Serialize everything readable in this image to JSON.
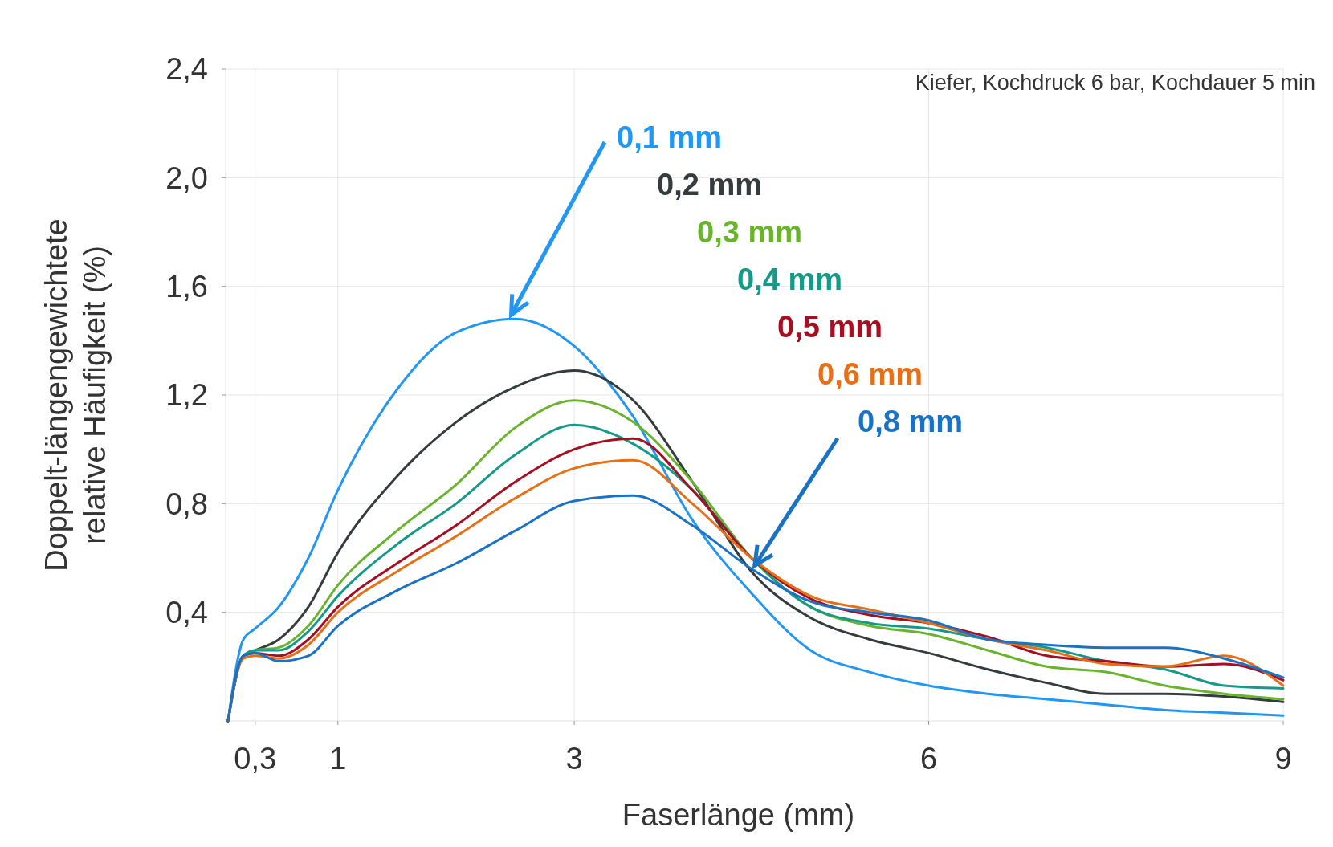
{
  "chart_data": {
    "type": "line",
    "subtitle": "Kiefer, Kochdruck 6 bar, Kochdauer 5 min",
    "xlabel": "Faserlänge (mm)",
    "ylabel": "Doppelt-längengewichtete relative Häufigkeit (%)",
    "x": [
      0.07,
      0.2,
      0.3,
      0.5,
      0.75,
      1,
      1.5,
      2,
      2.5,
      3,
      3.5,
      4,
      4.5,
      5,
      5.5,
      6,
      6.5,
      7,
      7.5,
      8,
      8.5,
      9
    ],
    "series": [
      {
        "name": "0,1 mm",
        "color": "#2196f3",
        "values": [
          0,
          0.3,
          0.34,
          0.42,
          0.6,
          0.85,
          1.22,
          1.43,
          1.48,
          1.38,
          1.12,
          0.74,
          0.47,
          0.26,
          0.18,
          0.13,
          0.1,
          0.08,
          0.06,
          0.04,
          0.03,
          0.02
        ]
      },
      {
        "name": "0,2 mm",
        "color": "#353c40",
        "values": [
          0,
          0.24,
          0.26,
          0.3,
          0.42,
          0.62,
          0.9,
          1.1,
          1.23,
          1.29,
          1.18,
          0.88,
          0.55,
          0.38,
          0.3,
          0.25,
          0.19,
          0.14,
          0.1,
          0.1,
          0.09,
          0.07
        ]
      },
      {
        "name": "0,3 mm",
        "color": "#6ab42d",
        "values": [
          0,
          0.24,
          0.26,
          0.27,
          0.35,
          0.5,
          0.7,
          0.87,
          1.08,
          1.18,
          1.1,
          0.88,
          0.6,
          0.42,
          0.35,
          0.32,
          0.26,
          0.2,
          0.18,
          0.13,
          0.1,
          0.08
        ]
      },
      {
        "name": "0,4 mm",
        "color": "#17998a",
        "values": [
          0,
          0.24,
          0.26,
          0.26,
          0.33,
          0.46,
          0.65,
          0.8,
          0.98,
          1.09,
          1.02,
          0.85,
          0.6,
          0.42,
          0.36,
          0.34,
          0.3,
          0.27,
          0.22,
          0.19,
          0.13,
          0.12
        ]
      },
      {
        "name": "0,5 mm",
        "color": "#a50f22",
        "values": [
          0,
          0.24,
          0.25,
          0.24,
          0.3,
          0.42,
          0.58,
          0.72,
          0.88,
          1.0,
          1.04,
          0.85,
          0.6,
          0.45,
          0.39,
          0.36,
          0.31,
          0.24,
          0.22,
          0.2,
          0.21,
          0.15
        ]
      },
      {
        "name": "0,6 mm",
        "color": "#e57017",
        "values": [
          0,
          0.23,
          0.24,
          0.23,
          0.28,
          0.4,
          0.55,
          0.68,
          0.82,
          0.93,
          0.96,
          0.8,
          0.6,
          0.46,
          0.41,
          0.36,
          0.3,
          0.26,
          0.21,
          0.2,
          0.24,
          0.13
        ]
      },
      {
        "name": "0,8 mm",
        "color": "#1a72c4",
        "values": [
          0,
          0.24,
          0.25,
          0.22,
          0.24,
          0.35,
          0.48,
          0.58,
          0.7,
          0.81,
          0.83,
          0.72,
          0.56,
          0.44,
          0.4,
          0.37,
          0.3,
          0.28,
          0.27,
          0.27,
          0.23,
          0.16
        ]
      }
    ],
    "xlim": [
      0.05,
      9
    ],
    "xticks": [
      {
        "value": 0.3,
        "label": "0,3"
      },
      1,
      3,
      6,
      9
    ],
    "ylim": [
      0,
      2.4
    ],
    "yticks": [
      {
        "value": 0.4,
        "label": "0,4"
      },
      {
        "value": 0.8,
        "label": "0,8"
      },
      {
        "value": 1.2,
        "label": "1,2"
      },
      {
        "value": 1.6,
        "label": "1,6"
      },
      {
        "value": 2.0,
        "label": "2,0"
      },
      {
        "value": 2.4,
        "label": "2,4"
      }
    ],
    "grid": true,
    "legend": "top right",
    "marker": "none",
    "line_style": "solid"
  }
}
